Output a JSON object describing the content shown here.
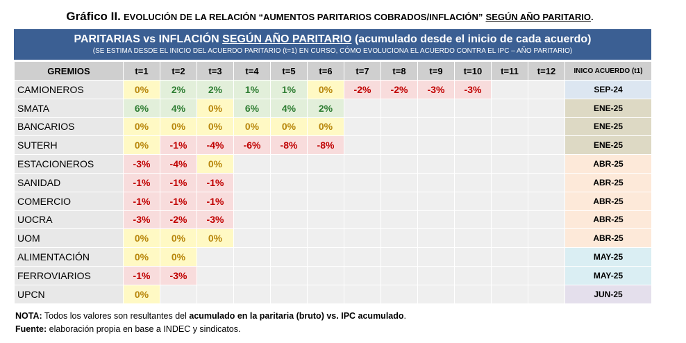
{
  "figure_title": {
    "lead": "Gráfico II.",
    "text": "EVOLUCIÓN DE LA RELACIÓN “AUMENTOS PARITARIOS COBRADOS/INFLACIÓN”",
    "underlined": "SEGÚN AÑO PARITARIO",
    "end": "."
  },
  "banner": {
    "title_start": "PARITARIAS vs INFLACIÓN",
    "title_underlined": "SEGÚN AÑO PARITARIO",
    "title_end": "(acumulado desde el inicio de cada acuerdo)",
    "subtitle": "(SE ESTIMA DESDE EL INICIO DEL ACUERDO PARITARIO (t=1) EN CURSO, CÓMO EVOLUCIONA EL ACUERDO CONTRA EL IPC – AÑO PARITARIO)"
  },
  "colors": {
    "positive_bg": "#e2efda",
    "positive_text": "#2e7d32",
    "zero_bg": "#fff9c4",
    "zero_text": "#b8860b",
    "negative_bg": "#f8dcdc",
    "negative_text": "#c00000",
    "banner_bg": "#3b5f93"
  },
  "chart_data": {
    "type": "table",
    "columns": [
      "GREMIOS",
      "t=1",
      "t=2",
      "t=3",
      "t=4",
      "t=5",
      "t=6",
      "t=7",
      "t=8",
      "t=9",
      "t=10",
      "t=11",
      "t=12",
      "INICO ACUERDO (t1)"
    ],
    "rows": [
      {
        "gremio": "CAMIONEROS",
        "values": [
          "0%",
          "2%",
          "2%",
          "1%",
          "1%",
          "0%",
          "-2%",
          "-2%",
          "-3%",
          "-3%"
        ],
        "inicio": "SEP-24",
        "inicio_bg": "#dce6f1"
      },
      {
        "gremio": "SMATA",
        "values": [
          "6%",
          "4%",
          "0%",
          "6%",
          "4%",
          "2%"
        ],
        "inicio": "ENE-25",
        "inicio_bg": "#ddd9c4"
      },
      {
        "gremio": "BANCARIOS",
        "values": [
          "0%",
          "0%",
          "0%",
          "0%",
          "0%",
          "0%"
        ],
        "inicio": "ENE-25",
        "inicio_bg": "#ddd9c4"
      },
      {
        "gremio": "SUTERH",
        "values": [
          "0%",
          "-1%",
          "-4%",
          "-6%",
          "-8%",
          "-8%"
        ],
        "inicio": "ENE-25",
        "inicio_bg": "#ddd9c4"
      },
      {
        "gremio": "ESTACIONEROS",
        "values": [
          "-3%",
          "-4%",
          "0%"
        ],
        "inicio": "ABR-25",
        "inicio_bg": "#fde9d9"
      },
      {
        "gremio": "SANIDAD",
        "values": [
          "-1%",
          "-1%",
          "-1%"
        ],
        "inicio": "ABR-25",
        "inicio_bg": "#fde9d9"
      },
      {
        "gremio": "COMERCIO",
        "values": [
          "-1%",
          "-1%",
          "-1%"
        ],
        "inicio": "ABR-25",
        "inicio_bg": "#fde9d9"
      },
      {
        "gremio": "UOCRA",
        "values": [
          "-3%",
          "-2%",
          "-3%"
        ],
        "inicio": "ABR-25",
        "inicio_bg": "#fde9d9"
      },
      {
        "gremio": "UOM",
        "values": [
          "0%",
          "0%",
          "0%"
        ],
        "inicio": "ABR-25",
        "inicio_bg": "#fde9d9"
      },
      {
        "gremio": "ALIMENTACIÓN",
        "values": [
          "0%",
          "0%"
        ],
        "inicio": "MAY-25",
        "inicio_bg": "#daeef3"
      },
      {
        "gremio": "FERROVIARIOS",
        "values": [
          "-1%",
          "-3%"
        ],
        "inicio": "MAY-25",
        "inicio_bg": "#daeef3"
      },
      {
        "gremio": "UPCN",
        "values": [
          "0%"
        ],
        "inicio": "JUN-25",
        "inicio_bg": "#e4dfec"
      }
    ]
  },
  "notes": {
    "nota_label": "NOTA:",
    "nota_text": "Todos los valores son resultantes del",
    "nota_bold1": "acumulado en la paritaria (bruto)",
    "nota_mid": "vs.",
    "nota_bold2": "IPC acumulado",
    "nota_end": ".",
    "fuente_label": "Fuente:",
    "fuente_text": "elaboración propia en base a INDEC y sindicatos."
  }
}
